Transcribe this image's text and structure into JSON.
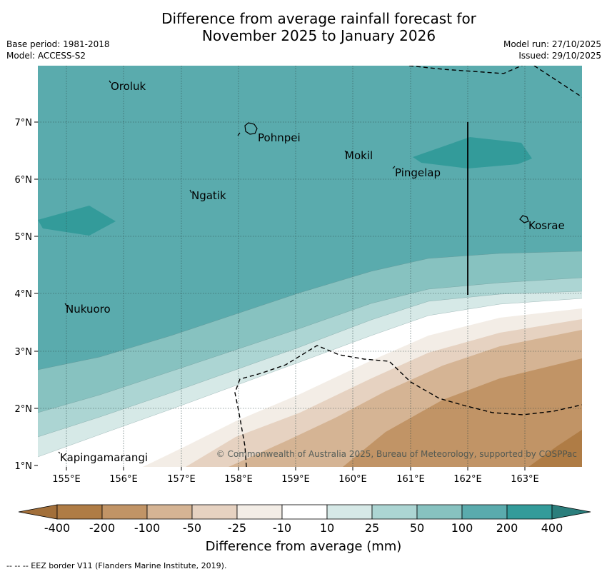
{
  "title_line1": "Difference from average rainfall forecast for",
  "title_line2": "November 2025 to January 2026",
  "base_period": "Base period: 1981-2018",
  "model": "Model: ACCESS-S2",
  "model_run": "Model run: 27/10/2025",
  "issued": "Issued: 29/10/2025",
  "places": [
    "Oroluk",
    "Pohnpei",
    "Mokil",
    "Pingelap",
    "Ngatik",
    "Kosrae",
    "Nukuoro",
    "Kapingamarangi"
  ],
  "lat_labels": [
    "7°N",
    "6°N",
    "5°N",
    "4°N",
    "3°N",
    "2°N",
    "1°N"
  ],
  "lon_labels": [
    "155°E",
    "156°E",
    "157°E",
    "158°E",
    "159°E",
    "160°E",
    "161°E",
    "162°E",
    "163°E"
  ],
  "copyright": "© Commonwealth of Australia 2025, Bureau of Meteorology, supported by COSPPac",
  "colorbar": {
    "labels": [
      "-400",
      "-200",
      "-100",
      "-50",
      "-25",
      "-10",
      "10",
      "25",
      "50",
      "100",
      "200",
      "400"
    ],
    "colors": [
      "#a26f3a",
      "#af7c45",
      "#c19466",
      "#d5b494",
      "#e6d2c1",
      "#f3ede6",
      "#ffffff",
      "#d6e9e7",
      "#acd5d3",
      "#87c2c0",
      "#5aabad",
      "#339b9a",
      "#2b7e7c"
    ],
    "title": "Difference from average (mm)"
  },
  "footnote": "--  --  -- EEZ border V11 (Flanders Marine Institute, 2019)."
}
